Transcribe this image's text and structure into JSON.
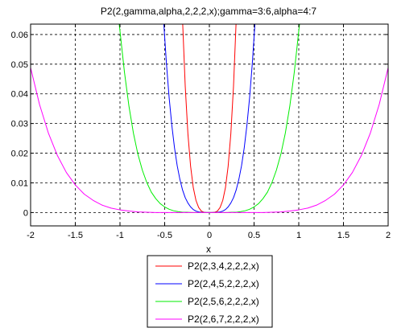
{
  "chart_data": {
    "type": "line",
    "title": "P2(2,gamma,alpha,2,2,2,x);gamma=3:6,alpha=4:7",
    "xlabel": "x",
    "ylabel": "",
    "xlim": [
      -2,
      2
    ],
    "ylim": [
      -0.0045,
      0.0635
    ],
    "xticks": [
      -2,
      -1.5,
      -1,
      -0.5,
      0,
      0.5,
      1,
      1.5,
      2
    ],
    "xtick_labels": [
      "-2",
      "-1.5",
      "-1",
      "-0.5",
      "0",
      "0.5",
      "1",
      "1.5",
      "2"
    ],
    "yticks": [
      0,
      0.01,
      0.02,
      0.03,
      0.04,
      0.05,
      0.06
    ],
    "ytick_labels": [
      "0",
      "0.01",
      "0.02",
      "0.03",
      "0.04",
      "0.05",
      "0.06"
    ],
    "grid": true,
    "grid_style": "dashed",
    "legend_placement": "below",
    "series": [
      {
        "name": "P2(2,3,4,2,2,2,x)",
        "color": "#ff0000",
        "x": [
          -0.3,
          -0.27,
          -0.24,
          -0.21,
          -0.18,
          -0.15,
          -0.12,
          -0.09,
          -0.06,
          -0.03,
          0,
          0.03,
          0.06,
          0.09,
          0.12,
          0.15,
          0.18,
          0.21,
          0.24,
          0.27,
          0.3
        ],
        "y": [
          0.0648,
          0.0425,
          0.0265,
          0.0156,
          0.0084,
          0.0041,
          0.0017,
          0.0005,
          0.0001,
          0.0,
          0.0,
          0.0,
          0.0001,
          0.0005,
          0.0017,
          0.0041,
          0.0084,
          0.0156,
          0.0265,
          0.0425,
          0.0648
        ]
      },
      {
        "name": "P2(2,4,5,2,2,2,x)",
        "color": "#0000ff",
        "x": [
          -0.51,
          -0.48,
          -0.45,
          -0.42,
          -0.39,
          -0.36,
          -0.33,
          -0.3,
          -0.27,
          -0.24,
          -0.21,
          -0.18,
          -0.15,
          -0.12,
          -0.09,
          -0.06,
          -0.03,
          0,
          0.03,
          0.06,
          0.09,
          0.12,
          0.15,
          0.18,
          0.21,
          0.24,
          0.27,
          0.3,
          0.33,
          0.36,
          0.39,
          0.42,
          0.45,
          0.48,
          0.51
        ],
        "y": [
          0.0637,
          0.0501,
          0.0387,
          0.0294,
          0.0218,
          0.0158,
          0.0112,
          0.0076,
          0.005,
          0.0032,
          0.0019,
          0.001,
          0.0005,
          0.0002,
          0.0001,
          0.0,
          0.0,
          0.0,
          0.0,
          0.0,
          0.0001,
          0.0002,
          0.0005,
          0.001,
          0.0019,
          0.0032,
          0.005,
          0.0076,
          0.0112,
          0.0158,
          0.0218,
          0.0294,
          0.0387,
          0.0501,
          0.0637
        ]
      },
      {
        "name": "P2(2,5,6,2,2,2,x)",
        "color": "#00ee00",
        "x": [
          -1.01,
          -0.95,
          -0.9,
          -0.85,
          -0.8,
          -0.75,
          -0.7,
          -0.65,
          -0.6,
          -0.55,
          -0.5,
          -0.45,
          -0.4,
          -0.35,
          -0.3,
          -0.25,
          -0.2,
          -0.15,
          -0.1,
          -0.05,
          0,
          0.05,
          0.1,
          0.15,
          0.2,
          0.25,
          0.3,
          0.35,
          0.4,
          0.45,
          0.5,
          0.55,
          0.6,
          0.65,
          0.7,
          0.75,
          0.8,
          0.85,
          0.9,
          0.95,
          1.01
        ],
        "y": [
          0.0639,
          0.0473,
          0.0359,
          0.0268,
          0.0197,
          0.0143,
          0.0101,
          0.0069,
          0.0047,
          0.003,
          0.0019,
          0.0011,
          0.0006,
          0.0003,
          0.0001,
          0.0001,
          0.0,
          0.0,
          0.0,
          0.0,
          0.0,
          0.0,
          0.0,
          0.0,
          0.0,
          0.0001,
          0.0001,
          0.0003,
          0.0006,
          0.0011,
          0.0019,
          0.003,
          0.0047,
          0.0069,
          0.0101,
          0.0143,
          0.0197,
          0.0268,
          0.0359,
          0.0473,
          0.0639
        ]
      },
      {
        "name": "P2(2,6,7,2,2,2,x)",
        "color": "#ff00ff",
        "x": [
          -2,
          -1.9,
          -1.8,
          -1.7,
          -1.6,
          -1.5,
          -1.4,
          -1.3,
          -1.2,
          -1.1,
          -1,
          -0.9,
          -0.8,
          -0.7,
          -0.6,
          -0.5,
          -0.4,
          -0.3,
          -0.2,
          -0.1,
          0,
          0.1,
          0.2,
          0.3,
          0.4,
          0.5,
          0.6,
          0.7,
          0.8,
          0.9,
          1,
          1.1,
          1.2,
          1.3,
          1.4,
          1.5,
          1.6,
          1.7,
          1.8,
          1.9,
          2
        ],
        "y": [
          0.0488,
          0.0364,
          0.0267,
          0.0192,
          0.0135,
          0.0093,
          0.0062,
          0.0041,
          0.0025,
          0.0015,
          0.0009,
          0.0005,
          0.0002,
          0.0001,
          0.0,
          0.0,
          0.0,
          0.0,
          0.0,
          0.0,
          0.0,
          0.0,
          0.0,
          0.0,
          0.0,
          0.0,
          0.0,
          0.0001,
          0.0002,
          0.0005,
          0.0009,
          0.0015,
          0.0025,
          0.0041,
          0.0062,
          0.0093,
          0.0135,
          0.0192,
          0.0267,
          0.0364,
          0.0488
        ]
      }
    ]
  }
}
